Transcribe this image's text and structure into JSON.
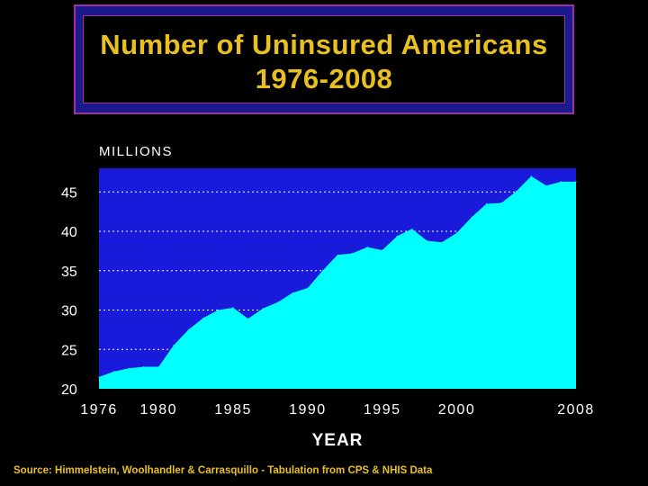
{
  "header": {
    "title_line1": "Number of Uninsured Americans",
    "title_line2": "1976-2008"
  },
  "source": "Source: Himmelstein, Woolhandler & Carrasquillo - Tabulation from CPS & NHIS Data",
  "colors": {
    "plot_background": "#1a1adb",
    "area_fill": "#00ffff",
    "title_text": "#e8c020",
    "axis_text": "#ffffff"
  },
  "chart_data": {
    "type": "area",
    "title": "Number of Uninsured Americans 1976-2008",
    "units_label": "MILLIONS",
    "xlabel": "YEAR",
    "ylabel": "",
    "xlim": [
      1976,
      2008
    ],
    "ylim": [
      20,
      48
    ],
    "x_ticks": [
      1976,
      1980,
      1985,
      1990,
      1995,
      2000,
      2008
    ],
    "y_ticks": [
      20,
      25,
      30,
      35,
      40,
      45
    ],
    "grid": "horizontal dotted",
    "series": [
      {
        "x": [
          1976,
          1977,
          1978,
          1979,
          1980,
          1981,
          1982,
          1983,
          1984,
          1985,
          1986,
          1987,
          1988,
          1989,
          1990,
          1991,
          1992,
          1993,
          1994,
          1995,
          1996,
          1997,
          1998,
          1999,
          2000,
          2001,
          2002,
          2003,
          2004,
          2005,
          2006,
          2007,
          2008
        ],
        "values": [
          21.5,
          22.2,
          22.6,
          22.8,
          22.8,
          25.5,
          27.5,
          29.0,
          30.0,
          30.3,
          28.9,
          30.2,
          31.0,
          32.2,
          32.8,
          35.0,
          37.0,
          37.2,
          38.0,
          37.6,
          39.4,
          40.3,
          38.8,
          38.6,
          39.8,
          41.8,
          43.5,
          43.6,
          45.1,
          47.0,
          45.8,
          46.3,
          46.3
        ]
      }
    ]
  }
}
